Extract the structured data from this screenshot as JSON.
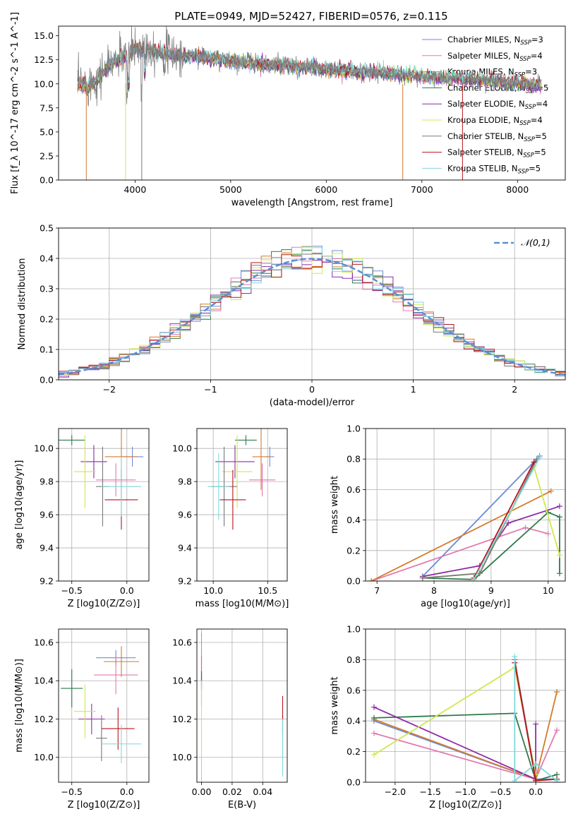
{
  "figure_title": "PLATE=0949, MJD=52427, FIBERID=0576, z=0.115",
  "models": [
    {
      "name": "Chabrier MILES, N_SSP=3",
      "color": "#6b8cd6"
    },
    {
      "name": "Salpeter MILES, N_SSP=4",
      "color": "#e27ab0"
    },
    {
      "name": "Kroupa MILES, N_SSP=3",
      "color": "#d57a2c"
    },
    {
      "name": "Chabrier ELODIE, N_SSP=5",
      "color": "#2f7a4a"
    },
    {
      "name": "Salpeter ELODIE, N_SSP=4",
      "color": "#8e2aa8"
    },
    {
      "name": "Kroupa ELODIE, N_SSP=4",
      "color": "#cfe84e"
    },
    {
      "name": "Chabrier STELIB, N_SSP=5",
      "color": "#7a7a7a"
    },
    {
      "name": "Salpeter STELIB, N_SSP=5",
      "color": "#b8141c"
    },
    {
      "name": "Kroupa STELIB, N_SSP=5",
      "color": "#7fd8dc"
    }
  ],
  "chart_data": [
    {
      "id": "spectrum",
      "type": "line",
      "title": "PLATE=0949, MJD=52427, FIBERID=0576, z=0.115",
      "xlabel": "wavelength [Angstrom, rest frame]",
      "ylabel": "Flux [f_λ 10^-17 erg cm^-2 s^-1 A^-1]",
      "xlim": [
        3200,
        8500
      ],
      "ylim": [
        0,
        16
      ],
      "xticks": [
        4000,
        5000,
        6000,
        7000,
        8000
      ],
      "yticks": [
        0.0,
        2.5,
        5.0,
        7.5,
        10.0,
        12.5,
        15.0
      ],
      "legend": "top-right",
      "data_x": [
        3400,
        3500,
        3600,
        3700,
        3800,
        3900,
        4000,
        4100,
        4200,
        4300,
        4400,
        4500,
        4600,
        4700,
        4800,
        4900,
        5000,
        5200,
        5400,
        5600,
        5800,
        6000,
        6200,
        6400,
        6600,
        6800,
        7000,
        7200,
        7400,
        7600,
        7800,
        8000,
        8250
      ],
      "data_y": [
        10.2,
        10.0,
        10.6,
        11.6,
        12.6,
        13.3,
        13.7,
        13.9,
        13.7,
        13.3,
        13.1,
        13.0,
        13.1,
        12.9,
        12.7,
        12.6,
        12.5,
        12.3,
        12.0,
        11.9,
        11.7,
        11.6,
        11.4,
        11.3,
        11.1,
        10.9,
        10.8,
        10.6,
        10.5,
        10.4,
        10.3,
        10.1,
        9.9
      ],
      "model_y": [
        9.8,
        9.7,
        10.4,
        11.5,
        12.4,
        13.0,
        13.5,
        13.6,
        13.4,
        13.1,
        13.0,
        12.9,
        12.9,
        12.8,
        12.6,
        12.5,
        12.4,
        12.2,
        12.0,
        11.9,
        11.7,
        11.5,
        11.4,
        11.2,
        11.1,
        10.9,
        10.8,
        10.6,
        10.5,
        10.4,
        10.3,
        10.1,
        9.9
      ]
    },
    {
      "id": "residuals",
      "type": "histogram",
      "xlabel": "(data-model)/error",
      "ylabel": "Normed distribution",
      "xlim": [
        -2.5,
        2.5
      ],
      "ylim": [
        0,
        0.5
      ],
      "xticks": [
        -2,
        -1,
        0,
        1,
        2
      ],
      "yticks": [
        0.0,
        0.1,
        0.2,
        0.3,
        0.4,
        0.5
      ],
      "reference": {
        "name": "𝒩(0,1)",
        "color": "#5b8fd6",
        "legend": "top-right"
      },
      "bin_width": 0.1
    },
    {
      "id": "age_z",
      "type": "errorbar",
      "xlabel": "Z [log10(Z/Z⊙)]",
      "ylabel": "age  [log10(age/yr)]",
      "xlim": [
        -0.62,
        0.2
      ],
      "ylim": [
        9.2,
        10.12
      ],
      "xticks": [
        -0.5,
        0.0
      ],
      "yticks": [
        9.2,
        9.4,
        9.6,
        9.8,
        10.0
      ],
      "points": [
        {
          "series": 0,
          "x": 0.05,
          "y": 9.95,
          "xerr": 0.1,
          "yerr": 0.06
        },
        {
          "series": 1,
          "x": -0.1,
          "y": 9.81,
          "xerr": 0.18,
          "yerr": 0.1
        },
        {
          "series": 2,
          "x": -0.05,
          "y": 9.95,
          "xerr": 0.15,
          "yerr": 0.2
        },
        {
          "series": 3,
          "x": -0.5,
          "y": 10.05,
          "xerr": 0.12,
          "yerr": 0.03
        },
        {
          "series": 4,
          "x": -0.3,
          "y": 9.92,
          "xerr": 0.12,
          "yerr": 0.1
        },
        {
          "series": 5,
          "x": -0.38,
          "y": 9.86,
          "xerr": 0.1,
          "yerr": 0.22
        },
        {
          "series": 6,
          "x": -0.22,
          "y": 9.77,
          "xerr": 0.06,
          "yerr": 0.24
        },
        {
          "series": 7,
          "x": -0.05,
          "y": 9.69,
          "xerr": 0.15,
          "yerr": 0.18
        },
        {
          "series": 8,
          "x": -0.05,
          "y": 9.77,
          "xerr": 0.18,
          "yerr": 0.18
        }
      ]
    },
    {
      "id": "age_mass",
      "type": "errorbar",
      "xlabel": "mass [log10(M/M⊙)]",
      "ylabel": "",
      "xlim": [
        9.85,
        10.68
      ],
      "ylim": [
        9.2,
        10.12
      ],
      "xticks": [
        10.0,
        10.5
      ],
      "yticks": [
        9.2,
        9.4,
        9.6,
        9.8,
        10.0
      ],
      "points": [
        {
          "series": 0,
          "x": 10.52,
          "y": 9.95,
          "xerr": 0.04,
          "yerr": 0.06
        },
        {
          "series": 1,
          "x": 10.45,
          "y": 9.81,
          "xerr": 0.12,
          "yerr": 0.1
        },
        {
          "series": 2,
          "x": 10.44,
          "y": 9.95,
          "xerr": 0.08,
          "yerr": 0.2
        },
        {
          "series": 3,
          "x": 10.3,
          "y": 10.05,
          "xerr": 0.1,
          "yerr": 0.03
        },
        {
          "series": 4,
          "x": 10.2,
          "y": 9.92,
          "xerr": 0.18,
          "yerr": 0.1
        },
        {
          "series": 5,
          "x": 10.22,
          "y": 9.86,
          "xerr": 0.14,
          "yerr": 0.22
        },
        {
          "series": 6,
          "x": 10.1,
          "y": 9.77,
          "xerr": 0.12,
          "yerr": 0.24
        },
        {
          "series": 7,
          "x": 10.18,
          "y": 9.69,
          "xerr": 0.12,
          "yerr": 0.18
        },
        {
          "series": 8,
          "x": 10.05,
          "y": 9.77,
          "xerr": 0.1,
          "yerr": 0.2
        }
      ]
    },
    {
      "id": "weight_age",
      "type": "line",
      "xlabel": "age  [log10(age/yr)]",
      "ylabel": "mass weight",
      "xlim": [
        6.8,
        10.3
      ],
      "ylim": [
        0,
        1
      ],
      "xticks": [
        7,
        8,
        9,
        10
      ],
      "yticks": [
        0.0,
        0.2,
        0.4,
        0.6,
        0.8,
        1.0
      ],
      "series": [
        {
          "series": 0,
          "x": [
            7.8,
            9.85
          ],
          "y": [
            0.03,
            0.82
          ]
        },
        {
          "series": 1,
          "x": [
            6.9,
            9.6,
            10.0
          ],
          "y": [
            0.0,
            0.35,
            0.31
          ]
        },
        {
          "series": 2,
          "x": [
            6.9,
            10.05
          ],
          "y": [
            0.0,
            0.59
          ]
        },
        {
          "series": 3,
          "x": [
            7.8,
            8.7,
            10.0,
            10.2,
            10.2
          ],
          "y": [
            0.02,
            0.01,
            0.45,
            0.42,
            0.05
          ]
        },
        {
          "series": 4,
          "x": [
            7.8,
            8.8,
            9.3,
            10.2
          ],
          "y": [
            0.03,
            0.1,
            0.38,
            0.49
          ]
        },
        {
          "series": 5,
          "x": [
            7.8,
            8.8,
            9.75,
            10.2
          ],
          "y": [
            0.02,
            0.05,
            0.75,
            0.17
          ]
        },
        {
          "series": 6,
          "x": [
            7.8,
            8.8,
            9.8
          ],
          "y": [
            0.02,
            0.05,
            0.8
          ]
        },
        {
          "series": 7,
          "x": [
            8.7,
            9.75
          ],
          "y": [
            0.02,
            0.78
          ]
        },
        {
          "series": 8,
          "x": [
            8.7,
            9.85
          ],
          "y": [
            0.01,
            0.81
          ]
        }
      ]
    },
    {
      "id": "mass_z",
      "type": "errorbar",
      "xlabel": "Z [log10(Z/Z⊙)]",
      "ylabel": "mass [log10(M/M⊙)]",
      "xlim": [
        -0.62,
        0.2
      ],
      "ylim": [
        9.87,
        10.67
      ],
      "xticks": [
        -0.5,
        0.0
      ],
      "yticks": [
        10.0,
        10.2,
        10.4,
        10.6
      ],
      "points": [
        {
          "series": 0,
          "x": -0.1,
          "y": 10.52,
          "xerr": 0.18,
          "yerr": 0.04
        },
        {
          "series": 1,
          "x": -0.1,
          "y": 10.43,
          "xerr": 0.2,
          "yerr": 0.1
        },
        {
          "series": 2,
          "x": -0.05,
          "y": 10.5,
          "xerr": 0.16,
          "yerr": 0.08
        },
        {
          "series": 3,
          "x": -0.5,
          "y": 10.36,
          "xerr": 0.1,
          "yerr": 0.1
        },
        {
          "series": 4,
          "x": -0.32,
          "y": 10.2,
          "xerr": 0.12,
          "yerr": 0.08
        },
        {
          "series": 5,
          "x": -0.38,
          "y": 10.24,
          "xerr": 0.1,
          "yerr": 0.14
        },
        {
          "series": 6,
          "x": -0.23,
          "y": 10.1,
          "xerr": 0.05,
          "yerr": 0.12
        },
        {
          "series": 7,
          "x": -0.08,
          "y": 10.15,
          "xerr": 0.15,
          "yerr": 0.11
        },
        {
          "series": 8,
          "x": -0.05,
          "y": 10.07,
          "xerr": 0.18,
          "yerr": 0.1
        }
      ]
    },
    {
      "id": "mass_ebv",
      "type": "errorbar",
      "xlabel": "E(B-V)",
      "ylabel": "",
      "xlim": [
        -0.003,
        0.056
      ],
      "ylim": [
        9.87,
        10.67
      ],
      "xticks": [
        0.0,
        0.02,
        0.04
      ],
      "yticks": [
        10.0,
        10.2,
        10.4,
        10.6
      ],
      "points": [
        {
          "series": 0,
          "x": 0.0,
          "y": 10.4,
          "xerr": 0.0,
          "yerr": 0.05
        },
        {
          "series": 1,
          "x": 0.0,
          "y": 10.55,
          "xerr": 0.0,
          "yerr": 0.1
        },
        {
          "series": 2,
          "x": 0.0,
          "y": 10.45,
          "xerr": 0.0,
          "yerr": 0.08
        },
        {
          "series": 3,
          "x": 0.0,
          "y": 10.35,
          "xerr": 0.0,
          "yerr": 0.08
        },
        {
          "series": 4,
          "x": 0.0,
          "y": 10.4,
          "xerr": 0.0,
          "yerr": 0.05
        },
        {
          "series": 5,
          "x": 0.0,
          "y": 10.2,
          "xerr": 0.0,
          "yerr": 0.2
        },
        {
          "series": 6,
          "x": 0.053,
          "y": 10.1,
          "xerr": 0.0,
          "yerr": 0.12
        },
        {
          "series": 7,
          "x": 0.053,
          "y": 10.22,
          "xerr": 0.0,
          "yerr": 0.1
        },
        {
          "series": 8,
          "x": 0.053,
          "y": 10.05,
          "xerr": 0.0,
          "yerr": 0.15
        }
      ]
    },
    {
      "id": "weight_z",
      "type": "line",
      "xlabel": "Z [log10(Z/Z⊙)]",
      "ylabel": "mass weight",
      "xlim": [
        -2.42,
        0.42
      ],
      "ylim": [
        0,
        1
      ],
      "xticks": [
        -2.0,
        -1.5,
        -1.0,
        -0.5,
        0.0
      ],
      "yticks": [
        0.0,
        0.2,
        0.4,
        0.6,
        0.8,
        1.0
      ],
      "series": [
        {
          "series": 0,
          "x": [
            -2.3,
            0.0,
            0.3
          ],
          "y": [
            0.4,
            0.02,
            0.02
          ]
        },
        {
          "series": 1,
          "x": [
            -2.3,
            0.0,
            0.3
          ],
          "y": [
            0.32,
            0.02,
            0.34
          ]
        },
        {
          "series": 2,
          "x": [
            -2.3,
            0.0,
            0.3
          ],
          "y": [
            0.41,
            0.02,
            0.59
          ]
        },
        {
          "series": 3,
          "x": [
            -2.3,
            -0.3,
            0.0,
            0.3
          ],
          "y": [
            0.42,
            0.45,
            0.01,
            0.05
          ]
        },
        {
          "series": 4,
          "x": [
            -2.3,
            0.0,
            0.0
          ],
          "y": [
            0.49,
            0.02,
            0.38
          ]
        },
        {
          "series": 5,
          "x": [
            -2.3,
            -0.3,
            0.0
          ],
          "y": [
            0.18,
            0.75,
            0.05
          ]
        },
        {
          "series": 6,
          "x": [
            -0.3,
            0.0
          ],
          "y": [
            0.8,
            0.02
          ]
        },
        {
          "series": 7,
          "x": [
            -0.3,
            0.0,
            0.3
          ],
          "y": [
            0.78,
            0.01,
            0.02
          ]
        },
        {
          "series": 8,
          "x": [
            -0.3,
            -0.3,
            0.0,
            0.3
          ],
          "y": [
            0.82,
            0.01,
            0.12,
            0.01
          ]
        }
      ]
    }
  ]
}
